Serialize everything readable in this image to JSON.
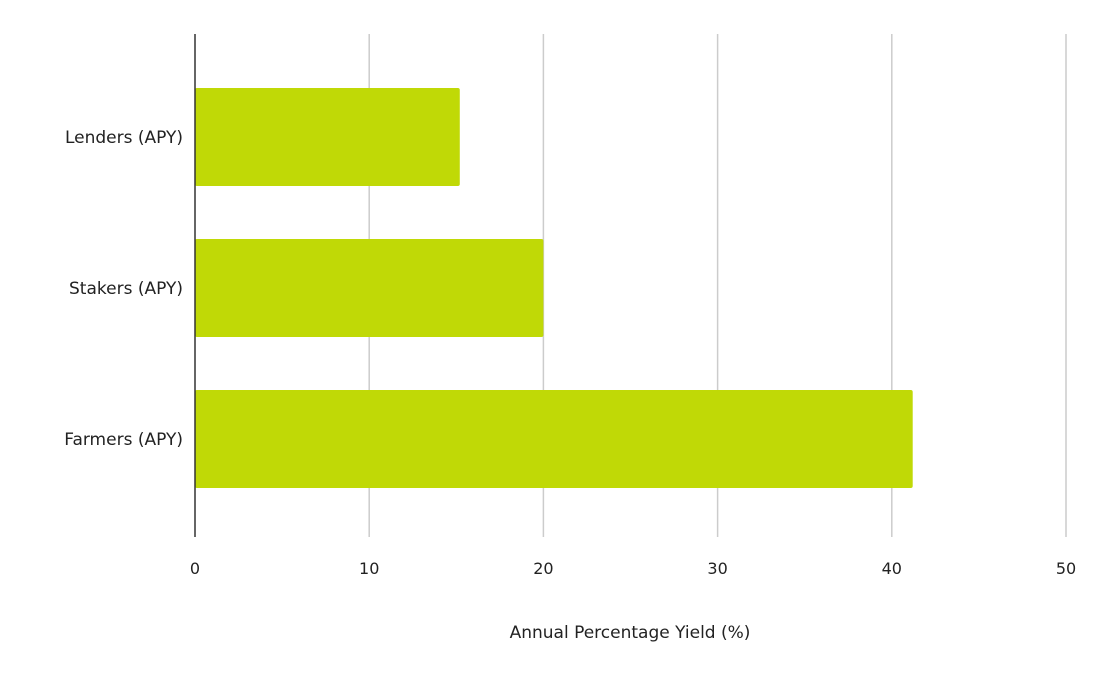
{
  "chart_data": {
    "type": "bar",
    "orientation": "horizontal",
    "categories": [
      "Lenders (APY)",
      "Stakers (APY)",
      "Farmers (APY)"
    ],
    "values": [
      15.2,
      20,
      41.2
    ],
    "title": "",
    "xlabel": "Annual Percentage Yield (%)",
    "ylabel": "",
    "xlim": [
      0,
      50
    ],
    "xticks": [
      "0",
      "10",
      "20",
      "30",
      "40",
      "50"
    ],
    "grid": "vertical",
    "legend": "none",
    "bar_color": "#c0d906"
  }
}
